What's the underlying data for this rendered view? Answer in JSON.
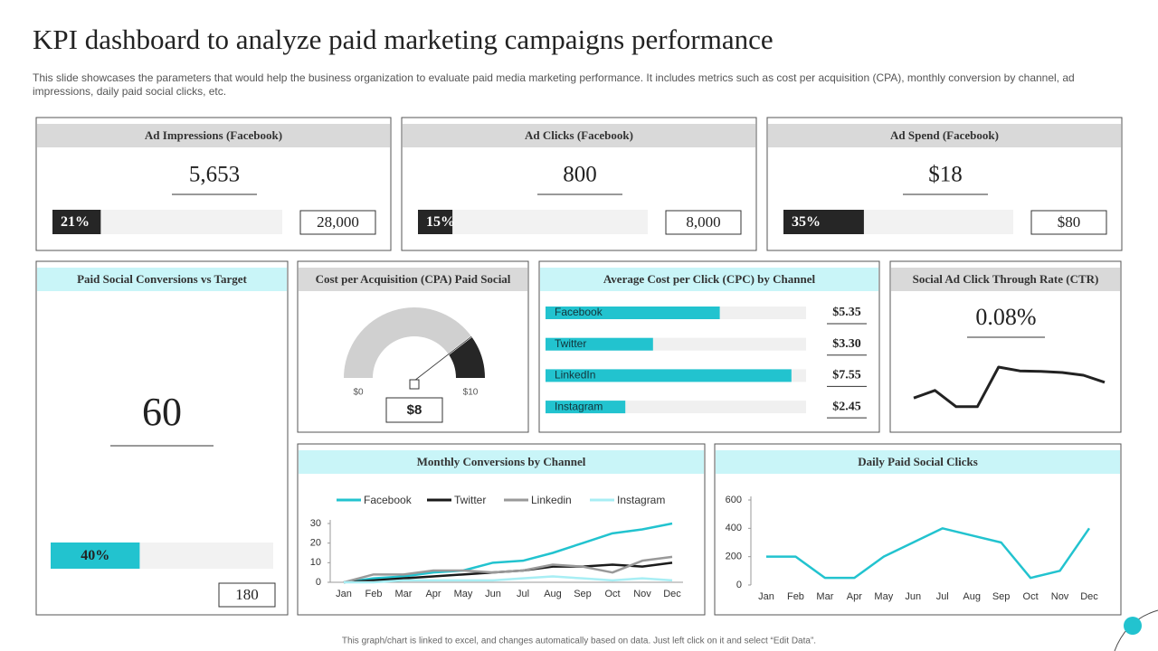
{
  "header": {
    "title": "KPI dashboard to analyze paid marketing campaigns performance",
    "subtitle": "This slide showcases the parameters that would help the business organization to evaluate paid media marketing performance. It includes metrics such as cost per acquisition (CPA), monthly conversion by channel, ad impressions, daily paid social clicks, etc."
  },
  "kpis": [
    {
      "title": "Ad Impressions (Facebook)",
      "value": "5,653",
      "progress": {
        "value": 21,
        "label": "21%"
      },
      "target": "28,000"
    },
    {
      "title": "Ad Clicks (Facebook)",
      "value": "800",
      "progress": {
        "value": 15,
        "label": "15%"
      },
      "target": "8,000"
    },
    {
      "title": "Ad Spend (Facebook)",
      "value": "$18",
      "progress": {
        "value": 35,
        "label": "35%"
      },
      "target": "$80"
    }
  ],
  "conversions": {
    "title": "Paid Social Conversions vs Target",
    "value": "60",
    "progress": {
      "value": 40,
      "label": "40%"
    },
    "target": "180"
  },
  "chart_data": [
    {
      "type": "gauge",
      "title": "Cost per Acquisition (CPA) Paid Social",
      "value": 8,
      "value_label": "$8",
      "xlim": [
        0,
        10
      ],
      "xticks": [
        {
          "value": 0,
          "label": "$0"
        },
        {
          "value": 10,
          "label": "$10"
        }
      ]
    },
    {
      "type": "hbar",
      "title": "Average Cost per Click (CPC) by Channel",
      "categories": [
        "Facebook",
        "Twitter",
        "LinkedIn",
        "Instagram"
      ],
      "values": [
        5.35,
        3.3,
        7.55,
        2.45
      ],
      "value_labels": [
        "$5.35",
        "$3.30",
        "$7.55",
        "$2.45"
      ],
      "xlim": [
        0,
        8
      ],
      "color": "#22c3cf"
    },
    {
      "type": "sparkline",
      "title": "Social Ad Click Through Rate (CTR)",
      "value": "0.08%",
      "values": [
        3.3,
        4.7,
        1.7,
        1.7,
        9,
        8.3,
        8.2,
        8,
        7.5,
        6.2
      ],
      "ylim": [
        0,
        10
      ],
      "color": "#222222"
    },
    {
      "type": "line",
      "title": "Monthly Conversions by Channel",
      "categories": [
        "Jan",
        "Feb",
        "Mar",
        "Apr",
        "May",
        "Jun",
        "Jul",
        "Aug",
        "Sep",
        "Oct",
        "Nov",
        "Dec"
      ],
      "series": [
        {
          "name": "Facebook",
          "color": "#22c3cf",
          "values": [
            0,
            2,
            3,
            5,
            6,
            10,
            11,
            15,
            20,
            25,
            27,
            30
          ]
        },
        {
          "name": "Twitter",
          "color": "#1a1a1a",
          "values": [
            0,
            1,
            2,
            3,
            4,
            5,
            6,
            8,
            8,
            9,
            8,
            10
          ]
        },
        {
          "name": "Linkedin",
          "color": "#999999",
          "values": [
            0,
            4,
            4,
            6,
            6,
            5,
            6,
            9,
            8,
            5,
            11,
            13
          ]
        },
        {
          "name": "Instagram",
          "color": "#a8eef4",
          "values": [
            0,
            0,
            1,
            1,
            1,
            1,
            2,
            3,
            2,
            1,
            2,
            1
          ]
        }
      ],
      "ylim": [
        0,
        30
      ],
      "yticks": [
        0,
        10,
        20,
        30
      ]
    },
    {
      "type": "line",
      "title": "Daily Paid Social Clicks",
      "categories": [
        "Jan",
        "Feb",
        "Mar",
        "Apr",
        "May",
        "Jun",
        "Jul",
        "Aug",
        "Sep",
        "Oct",
        "Nov",
        "Dec"
      ],
      "values": [
        200,
        200,
        50,
        50,
        200,
        300,
        400,
        350,
        300,
        50,
        100,
        400
      ],
      "color": "#22c3cf",
      "ylim": [
        0,
        600
      ],
      "yticks": [
        0,
        200,
        400,
        600
      ]
    }
  ],
  "footer": "This graph/chart is linked to excel, and changes automatically based on data. Just left click on it and select “Edit Data”."
}
